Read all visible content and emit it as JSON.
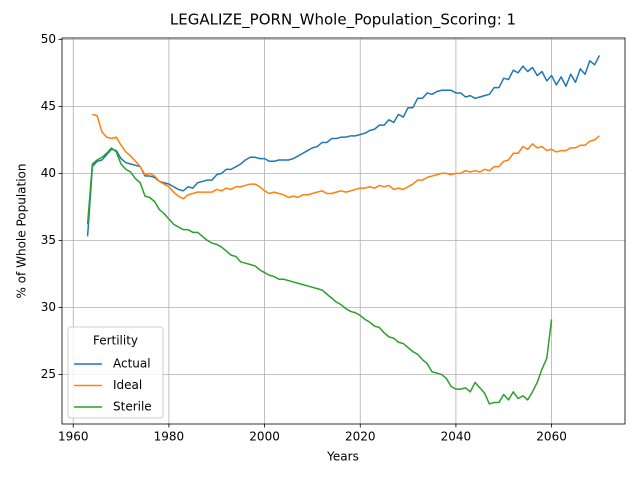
{
  "chart_data": {
    "type": "line",
    "title": "LEGALIZE_PORN_Whole_Population_Scoring: 1",
    "xlabel": "Years",
    "ylabel": "% of Whole Population",
    "legend_title": "Fertility",
    "legend": "lower left",
    "grid": true,
    "x": [
      1963,
      1964,
      1965,
      1966,
      1967,
      1968,
      1969,
      1970,
      1971,
      1972,
      1973,
      1974,
      1975,
      1976,
      1977,
      1978,
      1979,
      1980,
      1981,
      1982,
      1983,
      1984,
      1985,
      1986,
      1987,
      1988,
      1989,
      1990,
      1991,
      1992,
      1993,
      1994,
      1995,
      1996,
      1997,
      1998,
      1999,
      2000,
      2001,
      2002,
      2003,
      2004,
      2005,
      2006,
      2007,
      2008,
      2009,
      2010,
      2011,
      2012,
      2013,
      2014,
      2015,
      2016,
      2017,
      2018,
      2019,
      2020,
      2021,
      2022,
      2023,
      2024,
      2025,
      2026,
      2027,
      2028,
      2029,
      2030,
      2031,
      2032,
      2033,
      2034,
      2035,
      2036,
      2037,
      2038,
      2039,
      2040,
      2041,
      2042,
      2043,
      2044,
      2045,
      2046,
      2047,
      2048,
      2049,
      2050,
      2051,
      2052,
      2053,
      2054,
      2055,
      2056,
      2057,
      2058,
      2059,
      2060,
      2061,
      2062,
      2063,
      2064,
      2065,
      2066,
      2067,
      2068,
      2069,
      2070
    ],
    "series": [
      {
        "name": "Actual",
        "color": "#1f77b4",
        "values": [
          35.3,
          40.5,
          40.9,
          41.0,
          41.4,
          41.8,
          41.7,
          41.1,
          40.8,
          40.7,
          40.6,
          40.5,
          39.8,
          39.8,
          39.7,
          39.4,
          39.3,
          39.2,
          39.0,
          38.8,
          38.7,
          39.0,
          38.9,
          39.3,
          39.4,
          39.5,
          39.5,
          39.9,
          40.0,
          40.3,
          40.3,
          40.5,
          40.7,
          41.0,
          41.2,
          41.2,
          41.1,
          41.1,
          40.9,
          40.9,
          41.0,
          41.0,
          41.0,
          41.1,
          41.3,
          41.5,
          41.7,
          41.9,
          42.0,
          42.3,
          42.3,
          42.6,
          42.6,
          42.7,
          42.7,
          42.8,
          42.8,
          42.9,
          43.0,
          43.2,
          43.3,
          43.6,
          43.6,
          44.0,
          43.8,
          44.4,
          44.2,
          44.9,
          44.9,
          45.6,
          45.6,
          46.0,
          45.9,
          46.1,
          46.2,
          46.2,
          46.2,
          46.0,
          46.0,
          45.7,
          45.8,
          45.6,
          45.7,
          45.8,
          45.9,
          46.4,
          46.4,
          47.1,
          47.0,
          47.7,
          47.5,
          48.0,
          47.6,
          47.9,
          47.3,
          47.6,
          46.9,
          47.3,
          46.6,
          47.2,
          46.5,
          47.4,
          46.8,
          47.8,
          47.4,
          48.4,
          48.1,
          48.8
        ]
      },
      {
        "name": "Ideal",
        "color": "#ff7f0e",
        "values": [
          null,
          44.4,
          44.3,
          43.1,
          42.7,
          42.6,
          42.7,
          42.1,
          41.6,
          41.3,
          40.9,
          40.5,
          39.9,
          40.0,
          39.8,
          39.4,
          39.2,
          39.0,
          38.6,
          38.3,
          38.1,
          38.4,
          38.5,
          38.6,
          38.6,
          38.6,
          38.6,
          38.8,
          38.7,
          38.9,
          38.8,
          39.0,
          39.0,
          39.1,
          39.2,
          39.2,
          39.0,
          38.7,
          38.5,
          38.6,
          38.5,
          38.4,
          38.2,
          38.3,
          38.2,
          38.4,
          38.4,
          38.5,
          38.6,
          38.7,
          38.5,
          38.5,
          38.6,
          38.7,
          38.6,
          38.7,
          38.8,
          38.9,
          38.9,
          39.0,
          38.9,
          39.1,
          39.0,
          39.1,
          38.8,
          38.9,
          38.8,
          39.0,
          39.2,
          39.5,
          39.5,
          39.7,
          39.8,
          39.9,
          40.0,
          40.0,
          39.9,
          40.0,
          40.0,
          40.2,
          40.1,
          40.2,
          40.1,
          40.3,
          40.2,
          40.5,
          40.5,
          40.9,
          41.0,
          41.5,
          41.5,
          42.0,
          41.8,
          42.2,
          41.9,
          42.0,
          41.7,
          41.8,
          41.6,
          41.7,
          41.7,
          41.9,
          41.9,
          42.1,
          42.1,
          42.4,
          42.5,
          42.8
        ]
      },
      {
        "name": "Sterile",
        "color": "#2ca02c",
        "values": [
          36.2,
          40.7,
          41.0,
          41.2,
          41.5,
          41.9,
          41.6,
          40.7,
          40.3,
          40.1,
          39.6,
          39.3,
          38.3,
          38.2,
          37.9,
          37.3,
          37.0,
          36.6,
          36.2,
          36.0,
          35.8,
          35.8,
          35.6,
          35.6,
          35.3,
          35.0,
          34.8,
          34.7,
          34.5,
          34.2,
          33.9,
          33.8,
          33.4,
          33.3,
          33.2,
          33.1,
          32.8,
          32.6,
          32.4,
          32.3,
          32.1,
          32.1,
          32.0,
          31.9,
          31.8,
          31.7,
          31.6,
          31.5,
          31.4,
          31.3,
          31.0,
          30.7,
          30.4,
          30.2,
          29.9,
          29.7,
          29.6,
          29.4,
          29.1,
          28.9,
          28.6,
          28.5,
          28.1,
          27.8,
          27.7,
          27.4,
          27.3,
          27.0,
          26.7,
          26.5,
          26.1,
          25.8,
          25.2,
          25.1,
          25.0,
          24.7,
          24.1,
          23.9,
          23.9,
          24.0,
          23.7,
          24.4,
          24.0,
          23.6,
          22.8,
          22.9,
          22.9,
          23.5,
          23.1,
          23.7,
          23.2,
          23.4,
          23.1,
          23.7,
          24.4,
          25.4,
          26.2,
          29.1,
          null,
          null,
          null,
          null,
          null,
          null,
          null,
          null,
          null,
          null
        ]
      }
    ],
    "xlim": [
      1957.65,
      2075.35
    ],
    "xticks": [
      1960,
      1980,
      2000,
      2020,
      2040,
      2060
    ],
    "ylim": [
      21.3,
      50.1
    ],
    "yticks": [
      25,
      30,
      35,
      40,
      45,
      50
    ]
  }
}
